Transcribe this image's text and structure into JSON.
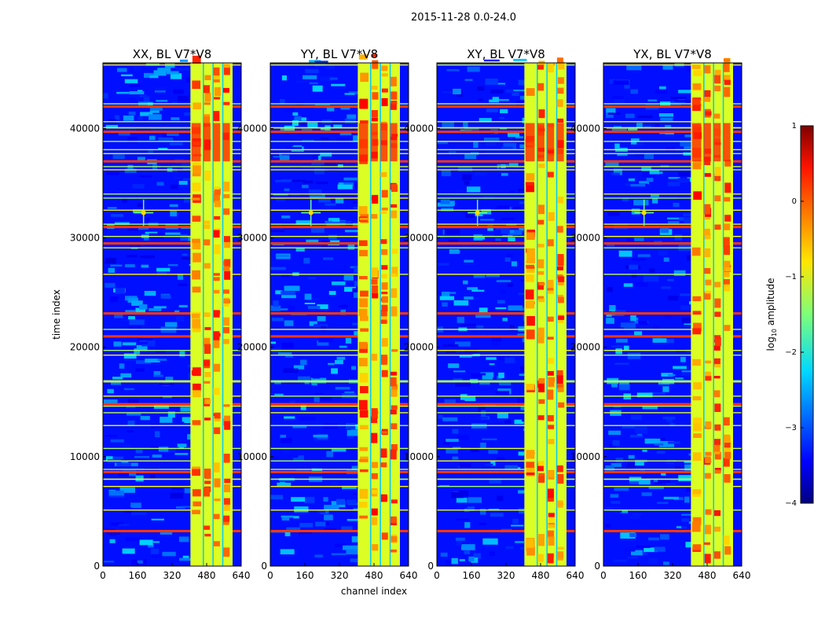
{
  "chart_data": {
    "type": "heatmap",
    "suptitle": "2015-11-28 0.0-24.0",
    "xlabel": "channel index",
    "ylabel": "time index",
    "xlim": [
      0,
      640
    ],
    "ylim": [
      0,
      46000
    ],
    "x_ticks": [
      0,
      160,
      320,
      480,
      640
    ],
    "y_ticks": [
      0,
      10000,
      20000,
      30000,
      40000
    ],
    "x_tick_labels": [
      "0",
      "160",
      "320",
      "480",
      "640"
    ],
    "y_tick_labels": [
      "0",
      "10000",
      "20000",
      "30000",
      "40000"
    ],
    "panels": [
      {
        "title": "XX, BL V7*V8"
      },
      {
        "title": "YY, BL V7*V8"
      },
      {
        "title": "XY, BL V7*V8"
      },
      {
        "title": "YX, BL V7*V8"
      }
    ],
    "colorbar": {
      "label": "log10 amplitude",
      "colormap": "jet",
      "range": [
        -4,
        1
      ],
      "ticks": [
        1,
        0,
        -1,
        -2,
        -3,
        -4
      ],
      "tick_labels": [
        "1",
        "0",
        "−1",
        "−2",
        "−3",
        "−4"
      ]
    },
    "features": {
      "background_level": -3.3,
      "high_band_channels": [
        [
          405,
          600
        ]
      ],
      "hot_sub_band_channels": [
        [
          410,
          460
        ],
        [
          465,
          505
        ],
        [
          510,
          550
        ],
        [
          555,
          595
        ]
      ],
      "rfi_time_rows": [
        3200,
        8600,
        14800,
        21000,
        23100,
        29500,
        31000,
        37000,
        39700,
        42000
      ],
      "point_source": {
        "channel": 188,
        "time": 32300
      }
    }
  }
}
